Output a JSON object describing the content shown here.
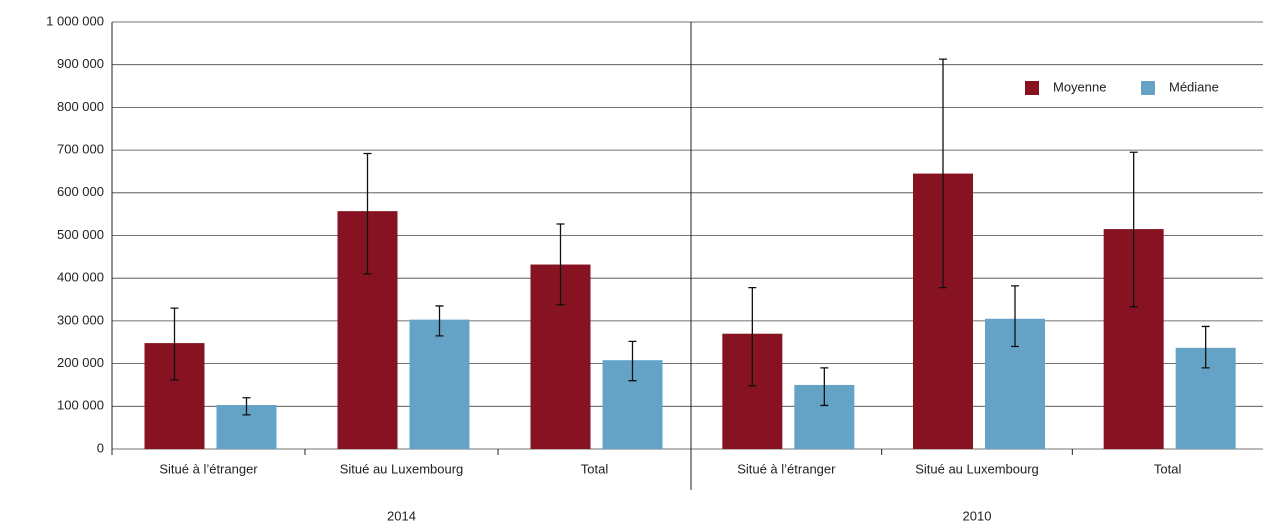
{
  "chart_data": {
    "type": "bar",
    "groups": [
      "2014",
      "2010"
    ],
    "categories": [
      "Situé à l’étranger",
      "Situé au Luxembourg",
      "Total",
      "Situé à l’étranger",
      "Situé au Luxembourg",
      "Total"
    ],
    "series": [
      {
        "name": "Moyenne",
        "color": "#861222",
        "values": [
          248000,
          557000,
          432000,
          270000,
          645000,
          515000
        ],
        "lower": [
          162000,
          410000,
          338000,
          148000,
          378000,
          333000
        ],
        "upper": [
          330000,
          692000,
          527000,
          378000,
          913000,
          695000
        ]
      },
      {
        "name": "Médiane",
        "color": "#65a3c6",
        "values": [
          103000,
          303000,
          208000,
          150000,
          305000,
          237000
        ],
        "lower": [
          80000,
          265000,
          160000,
          102000,
          240000,
          190000
        ],
        "upper": [
          120000,
          335000,
          252000,
          190000,
          382000,
          287000
        ]
      }
    ],
    "ylim": [
      0,
      1000000
    ],
    "yticks": [
      0,
      {
        "value": 100000,
        "label": "100 000"
      },
      {
        "value": 200000,
        "label": "200 000"
      },
      {
        "value": 300000,
        "label": "300 000"
      },
      {
        "value": 400000,
        "label": "400 000"
      },
      {
        "value": 500000,
        "label": "500 000"
      },
      {
        "value": 600000,
        "label": "600 000"
      },
      {
        "value": 700000,
        "label": "700 000"
      },
      {
        "value": 800000,
        "label": "800 000"
      },
      {
        "value": 900000,
        "label": "900 000"
      },
      {
        "value": 1000000,
        "label": "1 000 000"
      }
    ],
    "grid": true,
    "legend": "top-right"
  }
}
